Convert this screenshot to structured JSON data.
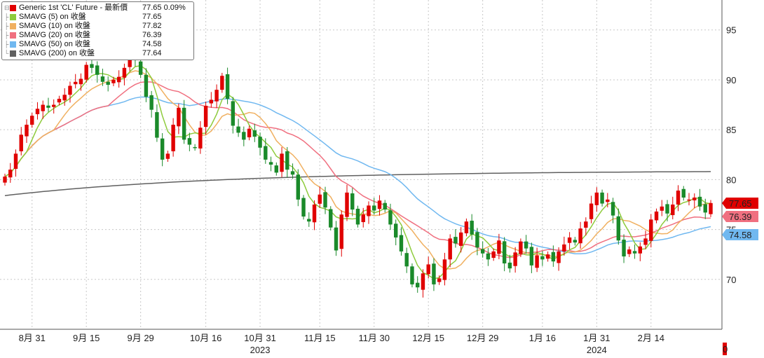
{
  "legend": {
    "items": [
      {
        "label": "Generic 1st 'CL' Future - 最新價",
        "value": "77.65  0.09%",
        "color": "#e00000"
      },
      {
        "label": "SMAVG (5)  on 收盤",
        "value": "77.65",
        "color": "#8ecb3c"
      },
      {
        "label": "SMAVG (10)  on 收盤",
        "value": "77.82",
        "color": "#f0b060"
      },
      {
        "label": "SMAVG (20)  on 收盤",
        "value": "76.39",
        "color": "#f07080"
      },
      {
        "label": "SMAVG (50)  on 收盤",
        "value": "74.58",
        "color": "#70b8f0"
      },
      {
        "label": "SMAVG (200)  on 收盤",
        "value": "77.64",
        "color": "#606060"
      }
    ]
  },
  "chart_data": {
    "type": "candlestick",
    "ylim": [
      65,
      98
    ],
    "y_ticks": [
      70,
      75,
      80,
      85,
      90,
      95
    ],
    "y_tick_labels": [
      "70",
      "75",
      "80",
      "85",
      "90",
      "95"
    ],
    "x_tick_labels": [
      "8月 31",
      "9月 15",
      "9月 29",
      "10月 16",
      "10月 31",
      "11月 15",
      "11月 30",
      "12月 15",
      "12月 29",
      "1月 16",
      "1月 31",
      "2月 14"
    ],
    "x_tick_index": [
      5,
      15,
      25,
      37,
      47,
      58,
      68,
      78,
      88,
      99,
      109,
      119
    ],
    "year_labels": [
      {
        "label": "2023",
        "index": 47
      },
      {
        "label": "2024",
        "index": 109
      }
    ],
    "up_color": "#e00000",
    "down_color": "#1a8a2a",
    "last_value_labels": [
      {
        "value": "77.65",
        "color": "#e00000"
      },
      {
        "value": "76.39",
        "color": "#f07080"
      },
      {
        "value": "74.58",
        "color": "#70b8f0"
      }
    ],
    "partial_tick_label": "0",
    "closes": [
      80.3,
      81.0,
      82.6,
      84.5,
      85.5,
      86.4,
      87.1,
      87.5,
      87.2,
      87.5,
      88.1,
      88.5,
      89.4,
      89.8,
      90.1,
      91.5,
      91.2,
      90.5,
      89.8,
      89.5,
      90.0,
      90.3,
      91.2,
      93.1,
      92.0,
      90.5,
      88.3,
      87.0,
      84.2,
      82.0,
      82.6,
      85.5,
      87.2,
      84.0,
      83.5,
      83.2,
      85.2,
      87.4,
      88.0,
      89.0,
      90.4,
      88.1,
      85.4,
      84.7,
      84.0,
      85.1,
      84.3,
      83.2,
      82.0,
      81.5,
      80.7,
      82.6,
      81.0,
      80.5,
      78.0,
      76.3,
      75.8,
      77.5,
      78.5,
      77.2,
      75.2,
      72.9,
      76.5,
      78.7,
      77.0,
      75.5,
      76.5,
      77.4,
      76.9,
      77.9,
      77.0,
      75.5,
      74.2,
      72.8,
      71.3,
      69.5,
      69.2,
      70.6,
      71.5,
      69.5,
      70.1,
      72.0,
      74.1,
      73.6,
      74.7,
      75.8,
      74.5,
      73.2,
      72.6,
      72.0,
      72.8,
      73.9,
      71.6,
      71.1,
      72.7,
      73.8,
      73.1,
      71.4,
      72.4,
      72.0,
      72.5,
      71.8,
      72.8,
      73.5,
      74.2,
      73.7,
      75.1,
      75.8,
      77.6,
      78.7,
      77.6,
      78.0,
      76.4,
      73.9,
      72.3,
      73.0,
      72.6,
      73.3,
      74.1,
      76.0,
      76.8,
      77.3,
      76.6,
      77.5,
      78.9,
      78.2,
      78.0,
      78.2,
      77.3,
      76.7,
      77.65
    ]
  }
}
